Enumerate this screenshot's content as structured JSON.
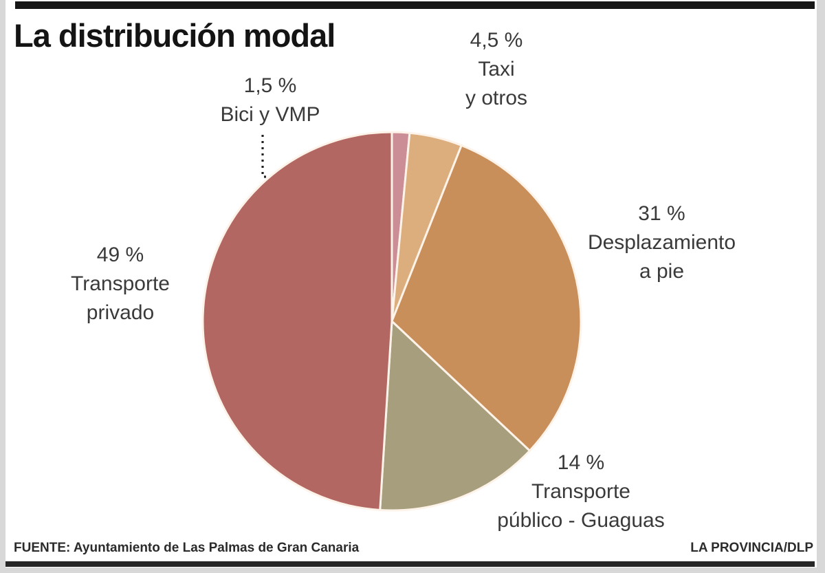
{
  "title": "La distribución modal",
  "source": "FUENTE: Ayuntamiento de Las Palmas de Gran Canaria",
  "credit": "LA PROVINCIA/DLP",
  "callouts": {
    "privado": {
      "line1": "49 %",
      "line2": "Transporte",
      "line3": "privado"
    },
    "bici": {
      "line1": "1,5 %",
      "line2": "Bici y VMP"
    },
    "taxi": {
      "line1": "4,5 %",
      "line2": "Taxi",
      "line3": "y otros"
    },
    "desplazamiento": {
      "line1": "31 %",
      "line2": "Desplazamiento",
      "line3": "a pie"
    },
    "publico": {
      "line1": "14 %",
      "line2": "Transporte",
      "line3": "público - Guaguas"
    }
  },
  "chart_data": {
    "type": "pie",
    "title": "La distribución modal",
    "start_angle_deg_from_north": 0,
    "direction": "clockwise",
    "units": "%",
    "slices": [
      {
        "label": "Bici y VMP",
        "value": 1.5,
        "display": "1,5 %",
        "color": "#cb8e97"
      },
      {
        "label": "Taxi y otros",
        "value": 4.5,
        "display": "4,5 %",
        "color": "#dcae7e"
      },
      {
        "label": "Desplazamiento a pie",
        "value": 31,
        "display": "31 %",
        "color": "#c98f5b"
      },
      {
        "label": "Transporte público - Guaguas",
        "value": 14,
        "display": "14 %",
        "color": "#a79e7e"
      },
      {
        "label": "Transporte privado",
        "value": 49,
        "display": "49 %",
        "color": "#b36763"
      }
    ],
    "separator_color": "#fdf3e9",
    "leader_line_color": "#222222",
    "legend_position": "around-pie-callouts"
  }
}
